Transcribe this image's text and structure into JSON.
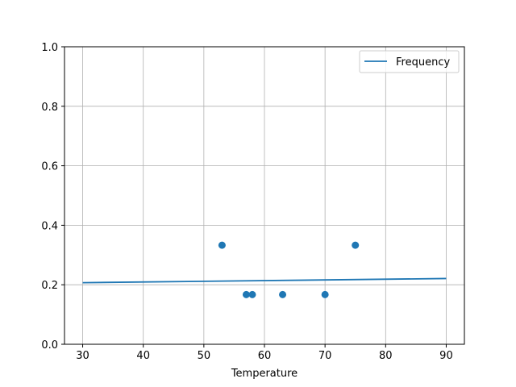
{
  "chart_data": {
    "type": "scatter",
    "title": "",
    "xlabel": "Temperature",
    "ylabel": "",
    "xlim": [
      27,
      93
    ],
    "ylim": [
      0,
      1
    ],
    "xticks": [
      30,
      40,
      50,
      60,
      70,
      80,
      90
    ],
    "yticks": [
      0.0,
      0.2,
      0.4,
      0.6,
      0.8,
      1.0
    ],
    "xtick_labels": [
      "30",
      "40",
      "50",
      "60",
      "70",
      "80",
      "90"
    ],
    "ytick_labels": [
      "0.0",
      "0.2",
      "0.4",
      "0.6",
      "0.8",
      "1.0"
    ],
    "grid": true,
    "legend_position": "top-right",
    "series": [
      {
        "name": "Frequency",
        "kind": "line",
        "color": "#1f77b4",
        "x": [
          30,
          90
        ],
        "y": [
          0.207,
          0.221
        ]
      },
      {
        "kind": "scatter",
        "color": "#1f77b4",
        "x": [
          53,
          57,
          58,
          63,
          70,
          75
        ],
        "y": [
          0.333,
          0.167,
          0.167,
          0.167,
          0.167,
          0.333
        ]
      }
    ]
  }
}
